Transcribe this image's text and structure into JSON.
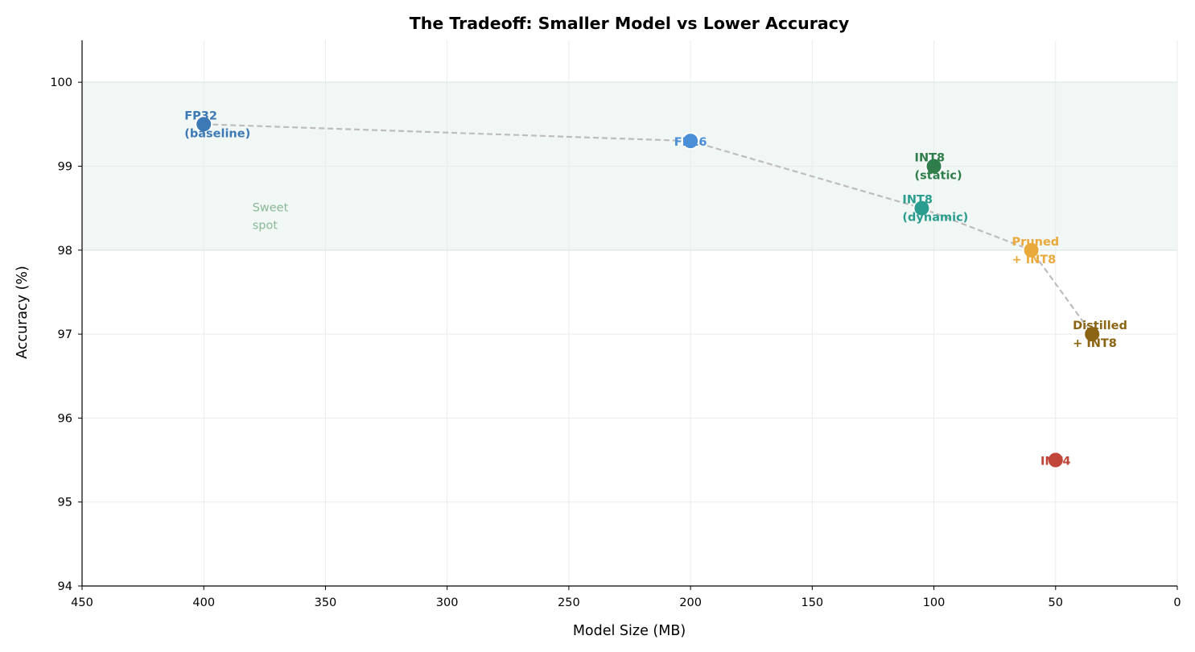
{
  "chart_data": {
    "type": "scatter",
    "title": "The Tradeoff: Smaller Model vs Lower Accuracy",
    "xlabel": "Model Size (MB)",
    "ylabel": "Accuracy (%)",
    "xlim": [
      450,
      0
    ],
    "ylim": [
      94,
      100.5
    ],
    "x_ticks": [
      450,
      400,
      350,
      300,
      250,
      200,
      150,
      100,
      50,
      0
    ],
    "y_ticks": [
      94,
      95,
      96,
      97,
      98,
      99,
      100
    ],
    "grid": true,
    "band": {
      "y_from": 98,
      "y_to": 100,
      "color": "#e8f2ec",
      "label": [
        "Sweet",
        "spot"
      ],
      "label_at": [
        380,
        98.35
      ],
      "label_color": "#8ab896"
    },
    "frontier": {
      "color": "#bdbdbd",
      "x": [
        400,
        200,
        105,
        60,
        35
      ],
      "y": [
        99.5,
        99.3,
        98.5,
        98,
        97
      ]
    },
    "points": [
      {
        "name": "FP32 (baseline)",
        "lines": [
          "FP32",
          "(baseline)"
        ],
        "x": 400,
        "y": 99.5,
        "color": "#3d7ab5"
      },
      {
        "name": "FP16",
        "lines": [
          "FP16"
        ],
        "x": 200,
        "y": 99.3,
        "color": "#4a8fd6"
      },
      {
        "name": "INT8 (static)",
        "lines": [
          "INT8",
          "(static)"
        ],
        "x": 100,
        "y": 99.0,
        "color": "#2e7d4a"
      },
      {
        "name": "INT8 (dynamic)",
        "lines": [
          "INT8",
          "(dynamic)"
        ],
        "x": 105,
        "y": 98.5,
        "color": "#2a9d8f"
      },
      {
        "name": "Pruned + INT8",
        "lines": [
          "Pruned",
          "+ INT8"
        ],
        "x": 60,
        "y": 98.0,
        "color": "#e9a93b"
      },
      {
        "name": "Distilled + INT8",
        "lines": [
          "Distilled",
          "+ INT8"
        ],
        "x": 35,
        "y": 97.0,
        "color": "#8b6414"
      },
      {
        "name": "INT4",
        "lines": [
          "INT4"
        ],
        "x": 50,
        "y": 95.5,
        "color": "#c0463a"
      }
    ]
  }
}
